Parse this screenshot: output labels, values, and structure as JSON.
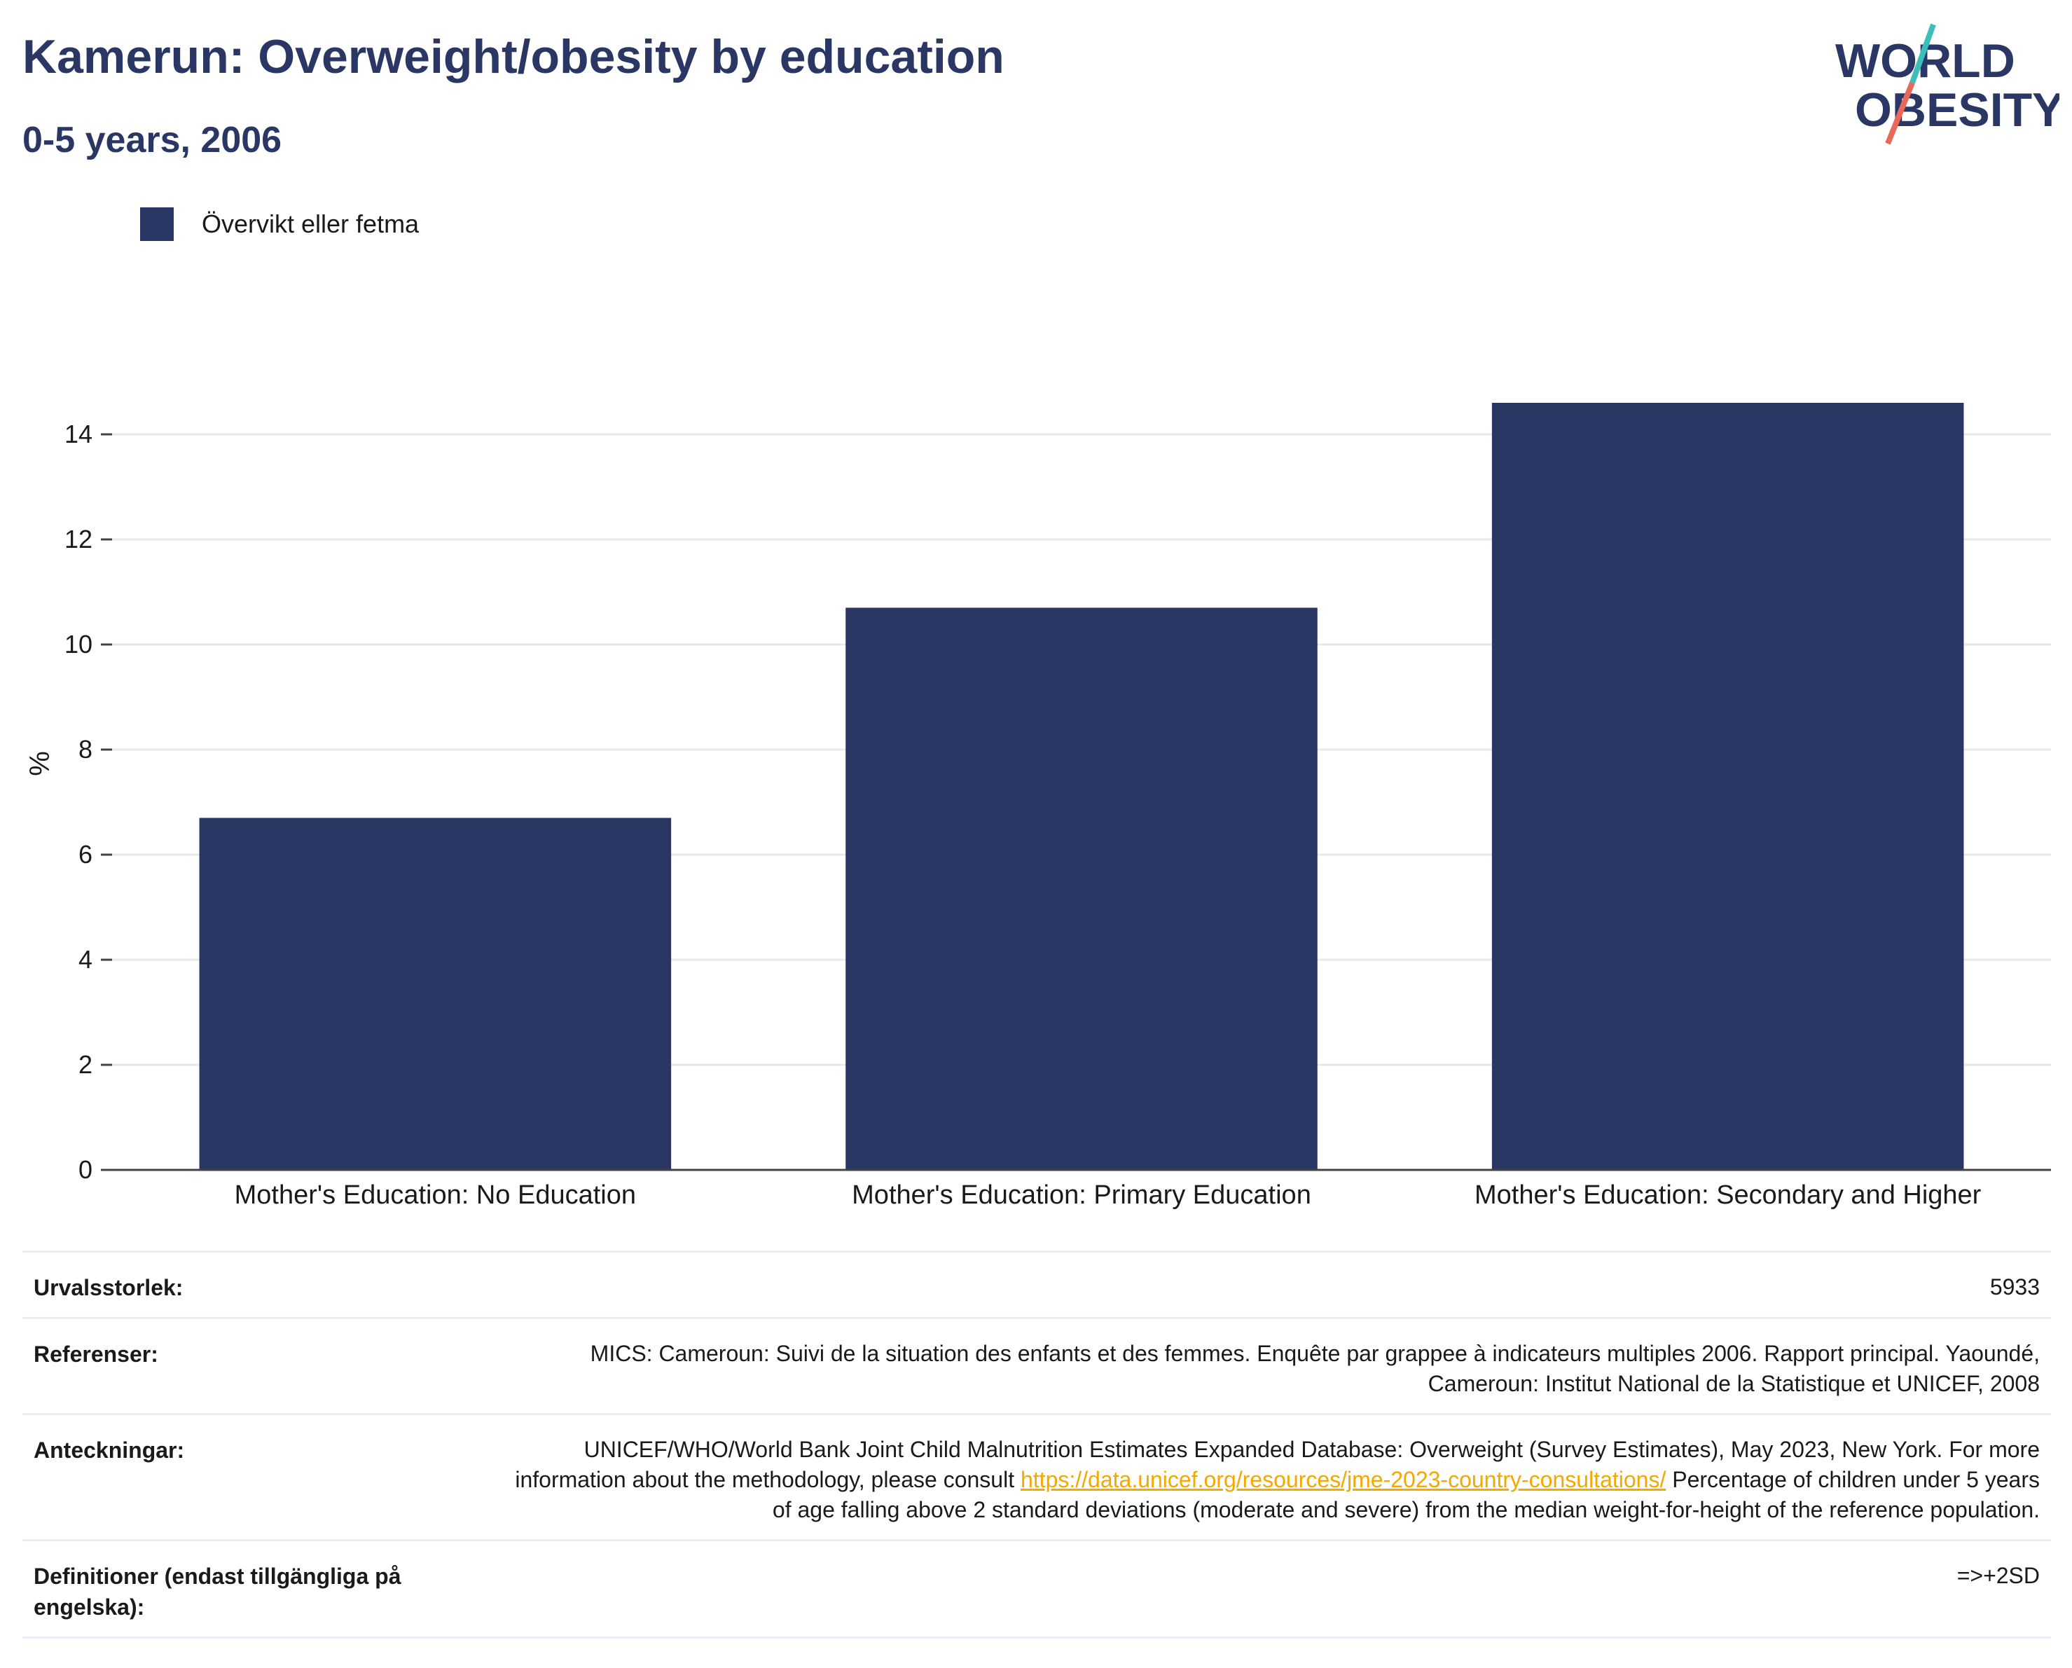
{
  "header": {
    "title": "Kamerun: Overweight/obesity by education",
    "subtitle": "0-5 years, 2006"
  },
  "logo": {
    "line1": "WORLD",
    "line2": "OBESITY"
  },
  "colors": {
    "bar": "#2a3663",
    "text": "#2a3663",
    "link": "#f5a800",
    "logo_teal": "#3bbfb8",
    "logo_coral": "#e8685a"
  },
  "chart_data": {
    "type": "bar",
    "categories": [
      "Mother's Education: No Education",
      "Mother's Education: Primary Education",
      "Mother's Education: Secondary and Higher"
    ],
    "series": [
      {
        "name": "Övervikt eller fetma",
        "values": [
          6.7,
          10.7,
          14.6
        ]
      }
    ],
    "ylabel": "%",
    "xlabel": "",
    "ylim": [
      0,
      15.2
    ],
    "yticks": [
      0,
      2,
      4,
      6,
      8,
      10,
      12,
      14
    ],
    "grid": true,
    "legend": "top-left"
  },
  "meta": {
    "sample_label": "Urvalsstorlek:",
    "sample_value": "5933",
    "refs_label": "Referenser:",
    "refs_value": "MICS: Cameroun: Suivi de la situation des enfants et des femmes. Enquête par grappee à indicateurs multiples 2006. Rapport principal. Yaoundé, Cameroun: Institut National de la Statistique et UNICEF, 2008",
    "notes_label": "Anteckningar:",
    "notes_value_before": "UNICEF/WHO/World Bank Joint Child Malnutrition Estimates Expanded Database: Overweight (Survey Estimates), May 2023, New York. For more information about the methodology, please consult ",
    "notes_link": "https://data.unicef.org/resources/jme-2023-country-consultations/",
    "notes_value_after": " Percentage of children under 5 years of age falling above 2 standard deviations (moderate and severe) from the median weight-for-height of the reference population.",
    "defs_label": "Definitioner (endast tillgängliga på engelska):",
    "defs_value": "=>+2SD"
  }
}
